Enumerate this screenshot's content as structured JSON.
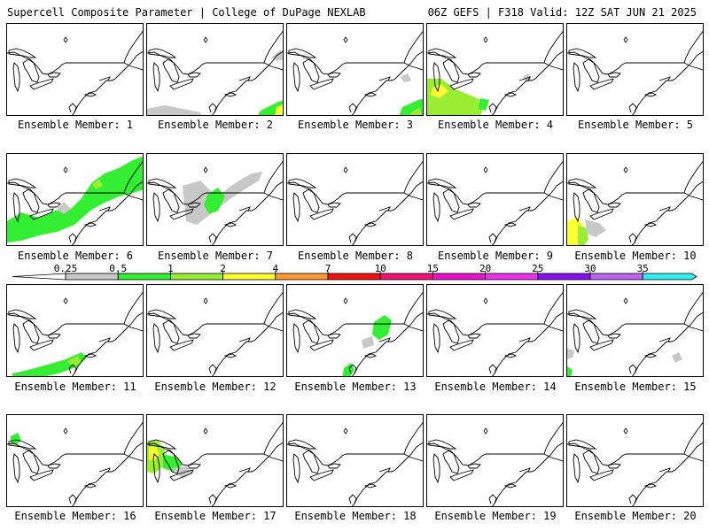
{
  "header": {
    "title": "Supercell Composite Parameter | College of DuPage NEXLAB",
    "run_info": "06Z GEFS | F318 Valid: 12Z SAT JUN 21 2025"
  },
  "member_label_prefix": "Ensemble Member: ",
  "members": [
    1,
    2,
    3,
    4,
    5,
    6,
    7,
    8,
    9,
    10,
    11,
    12,
    13,
    14,
    15,
    16,
    17,
    18,
    19,
    20
  ],
  "colorbar": {
    "labels": [
      "0.25",
      "0.5",
      "1",
      "2",
      "4",
      "7",
      "10",
      "15",
      "20",
      "25",
      "30",
      "35"
    ],
    "colors": [
      "#c8c8c8",
      "#33ee33",
      "#99ee33",
      "#ffff33",
      "#ff9933",
      "#ee1111",
      "#ee1177",
      "#ee11cc",
      "#ee33ee",
      "#8811ee",
      "#bb66ee",
      "#33eeee"
    ]
  },
  "colors": {
    "coast": "#000000",
    "background": "#ffffff"
  }
}
